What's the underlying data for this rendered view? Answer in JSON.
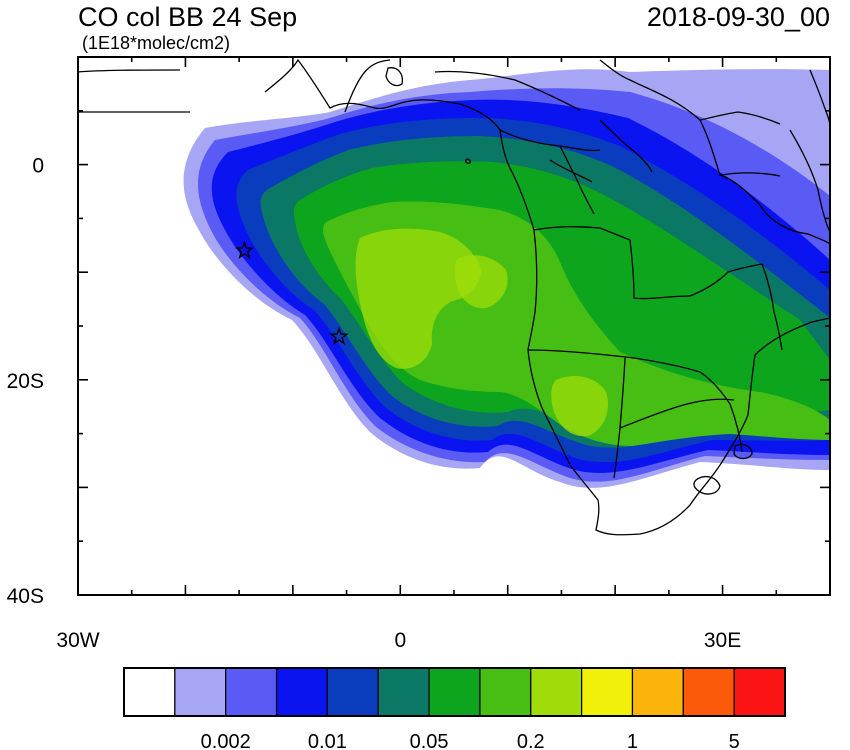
{
  "header": {
    "title": "CO col BB 24 Sep",
    "date": "2018-09-30_00",
    "units": "(1E18*molec/cm2)"
  },
  "axes": {
    "lon_range": [
      -30,
      40
    ],
    "lat_range": [
      -40,
      10
    ],
    "y_ticks": [
      {
        "value": 0,
        "label": "0"
      },
      {
        "value": -20,
        "label": "20S"
      },
      {
        "value": -40,
        "label": "40S"
      }
    ],
    "x_ticks": [
      {
        "value": -30,
        "label": "30W"
      },
      {
        "value": 0,
        "label": "0"
      },
      {
        "value": 30,
        "label": "30E"
      }
    ]
  },
  "legend": {
    "colors": [
      "#ffffff",
      "#a6a6f5",
      "#5a5af5",
      "#0a14f0",
      "#0a3cbe",
      "#0a7864",
      "#0ea51e",
      "#46be14",
      "#a0dc0a",
      "#f0f00a",
      "#fab40a",
      "#fa5a0a",
      "#fa1414"
    ],
    "labels": [
      "0.002",
      "0.01",
      "0.05",
      "0.2",
      "1",
      "5"
    ]
  },
  "markers": [
    {
      "name": "star-marker-1",
      "lon": -14.5,
      "lat": -8
    },
    {
      "name": "star-marker-2",
      "lon": -5.7,
      "lat": -16
    }
  ]
}
